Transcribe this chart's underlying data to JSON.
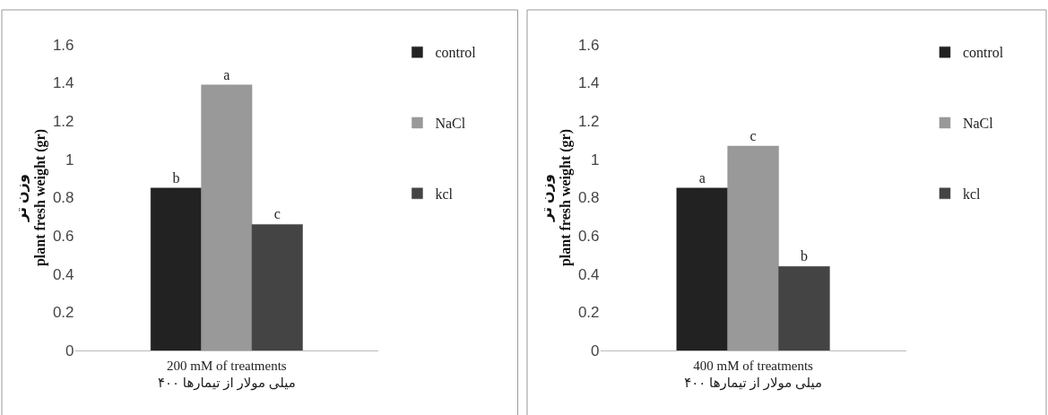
{
  "chart_data": [
    {
      "type": "bar",
      "categories": [
        null
      ],
      "xlabel": "200 mM of treatments\n۴۰۰ میلی مولار از تیمارها",
      "ylabel": "وزن تر\nplant fresh weight (gr)",
      "ylim": [
        0,
        1.6
      ],
      "yticks": [
        0,
        0.2,
        0.4,
        0.6,
        0.8,
        1,
        1.2,
        1.4,
        1.6
      ],
      "legend": "right",
      "series": [
        {
          "name": "control",
          "color": "#222222",
          "values": [
            0.85
          ],
          "value_labels": [
            "b"
          ]
        },
        {
          "name": "NaCl",
          "color": "#999999",
          "values": [
            1.39
          ],
          "value_labels": [
            "a"
          ]
        },
        {
          "name": "kcl",
          "color": "#444444",
          "values": [
            0.66
          ],
          "value_labels": [
            "c"
          ]
        }
      ]
    },
    {
      "type": "bar",
      "categories": [
        null
      ],
      "xlabel": "400 mM of treatments\n۴۰۰ میلی مولار از تیمارها",
      "ylabel": "وزن تر\nplant fresh weight (gr)",
      "ylim": [
        0,
        1.6
      ],
      "yticks": [
        0,
        0.2,
        0.4,
        0.6,
        0.8,
        1,
        1.2,
        1.4,
        1.6
      ],
      "legend": "right",
      "series": [
        {
          "name": "control",
          "color": "#222222",
          "values": [
            0.85
          ],
          "value_labels": [
            "a"
          ]
        },
        {
          "name": "NaCl",
          "color": "#999999",
          "values": [
            1.07
          ],
          "value_labels": [
            "c"
          ]
        },
        {
          "name": "kcl",
          "color": "#444444",
          "values": [
            0.44
          ],
          "value_labels": [
            "b"
          ]
        }
      ]
    }
  ]
}
